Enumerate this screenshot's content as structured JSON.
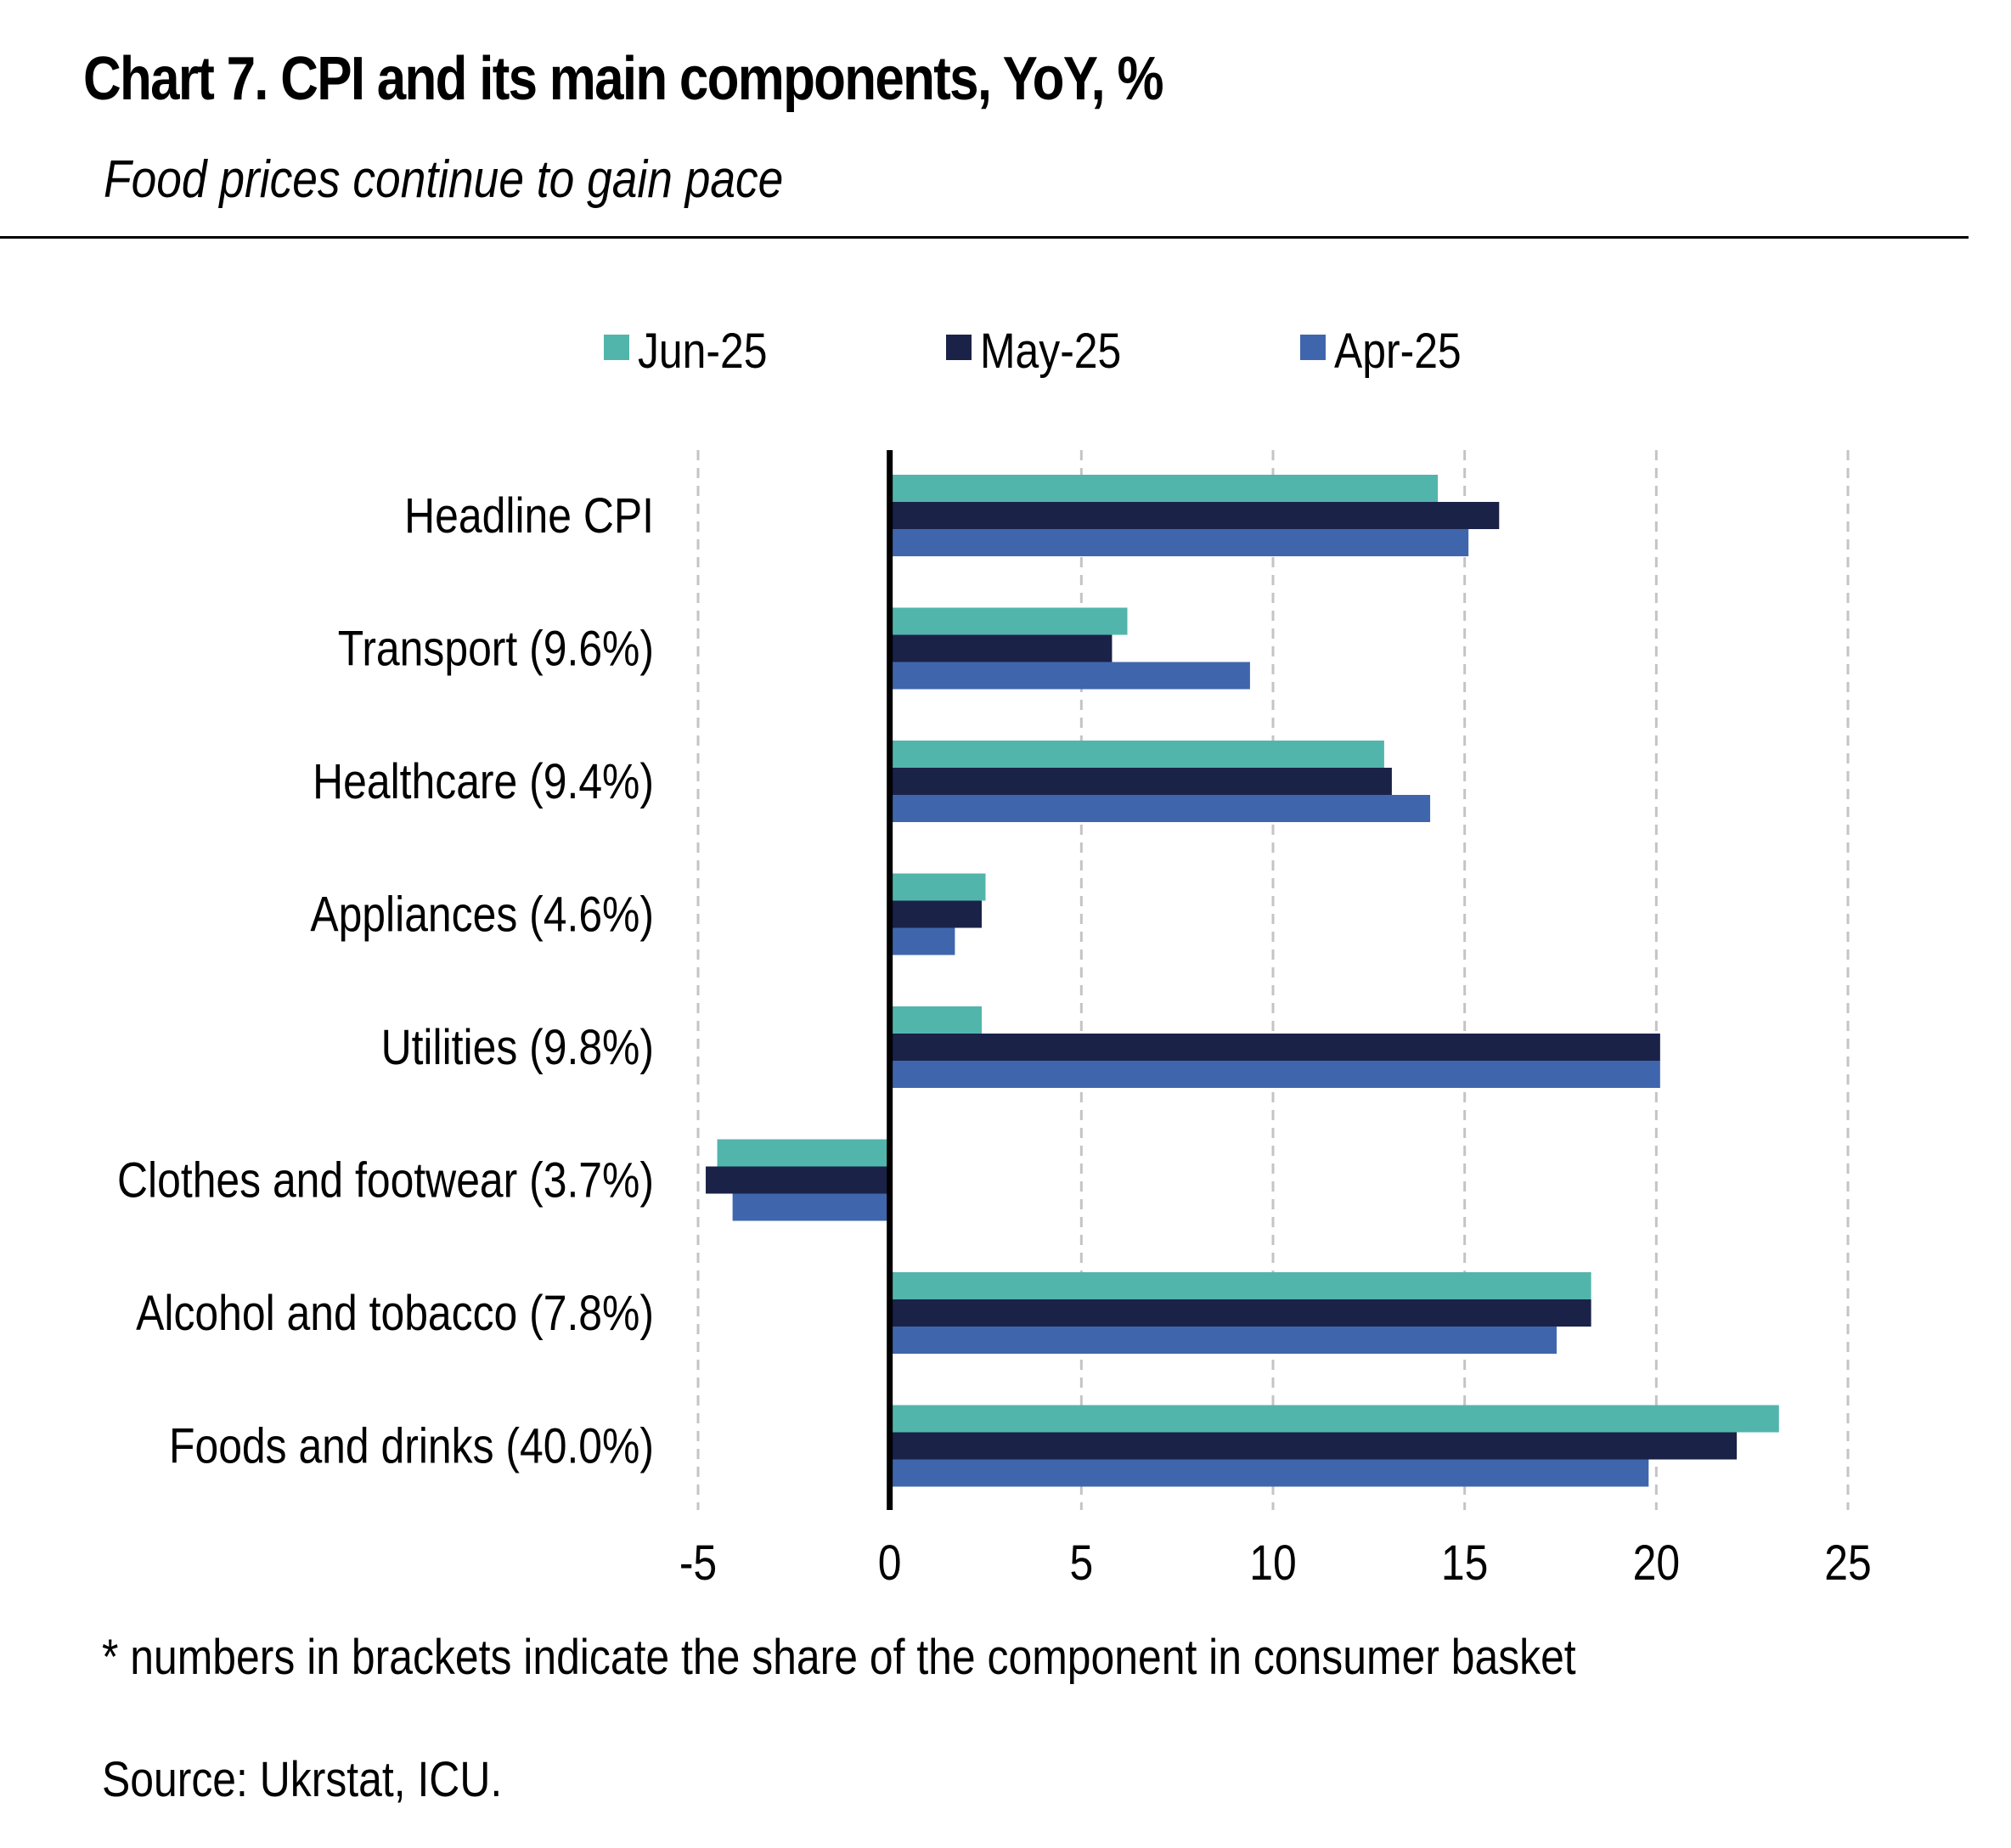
{
  "title": "Chart 7. CPI and its main components, YoY, %",
  "subtitle": "Food prices continue to gain pace",
  "footnote": "* numbers in brackets indicate the share of the component in consumer basket",
  "source": "Source: Ukrstat, ICU.",
  "chart_data": {
    "type": "bar",
    "orientation": "horizontal",
    "categories": [
      "Headline CPI",
      "Transport (9.6%)",
      "Healthcare (9.4%)",
      "Appliances (4.6%)",
      "Utilities (9.8%)",
      "Clothes and footwear (3.7%)",
      "Alcohol and tobacco (7.8%)",
      "Foods and drinks (40.0%)"
    ],
    "series": [
      {
        "name": "Jun-25",
        "color": "#52b5ac",
        "values": [
          14.3,
          6.2,
          12.9,
          2.5,
          2.4,
          -4.5,
          18.3,
          23.2
        ]
      },
      {
        "name": "May-25",
        "color": "#1b2248",
        "values": [
          15.9,
          5.8,
          13.1,
          2.4,
          20.1,
          -4.8,
          18.3,
          22.1
        ]
      },
      {
        "name": "Apr-25",
        "color": "#3f66ad",
        "values": [
          15.1,
          9.4,
          14.1,
          1.7,
          20.1,
          -4.1,
          17.4,
          19.8
        ]
      }
    ],
    "xlim": [
      -5,
      25
    ],
    "xticks": [
      -5,
      0,
      5,
      10,
      15,
      20,
      25
    ],
    "xtick_labels": [
      "-5",
      "0",
      "5",
      "10",
      "15",
      "20",
      "25"
    ],
    "grid": "vertical dashed",
    "legend_position": "top"
  }
}
